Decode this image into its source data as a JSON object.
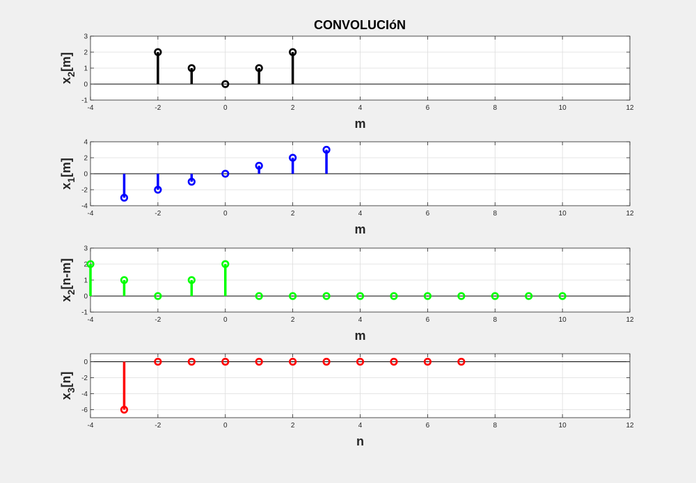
{
  "figure": {
    "title": "CONVOLUCIóN",
    "background": "#f0f0f0"
  },
  "chart_data": [
    {
      "type": "stem",
      "ylabel": "x",
      "ylabel_sub": "2",
      "ylabel_tail": "[m]",
      "xlabel": "m",
      "xlim": [
        -4,
        12
      ],
      "ylim": [
        -1,
        3
      ],
      "xticks": [
        -4,
        -2,
        0,
        2,
        4,
        6,
        8,
        10,
        12
      ],
      "yticks": [
        -1,
        0,
        1,
        2,
        3
      ],
      "grid": true,
      "color": "#000000",
      "x": [
        -2,
        -1,
        0,
        1,
        2
      ],
      "y": [
        2,
        1,
        0,
        1,
        2
      ]
    },
    {
      "type": "stem",
      "ylabel": "x",
      "ylabel_sub": "1",
      "ylabel_tail": "[m]",
      "xlabel": "m",
      "xlim": [
        -4,
        12
      ],
      "ylim": [
        -4,
        4
      ],
      "xticks": [
        -4,
        -2,
        0,
        2,
        4,
        6,
        8,
        10,
        12
      ],
      "yticks": [
        -4,
        -2,
        0,
        2,
        4
      ],
      "grid": true,
      "color": "#0000ff",
      "x": [
        -3,
        -2,
        -1,
        0,
        1,
        2,
        3
      ],
      "y": [
        -3,
        -2,
        -1,
        0,
        1,
        2,
        3
      ]
    },
    {
      "type": "stem",
      "ylabel": "x",
      "ylabel_sub": "2",
      "ylabel_tail": "[n-m]",
      "xlabel": "m",
      "xlim": [
        -4,
        12
      ],
      "ylim": [
        -1,
        3
      ],
      "xticks": [
        -4,
        -2,
        0,
        2,
        4,
        6,
        8,
        10,
        12
      ],
      "yticks": [
        -1,
        0,
        1,
        2,
        3
      ],
      "grid": true,
      "color": "#00ff00",
      "x": [
        -4,
        -3,
        -2,
        -1,
        0,
        1,
        2,
        3,
        4,
        5,
        6,
        7,
        8,
        9,
        10
      ],
      "y": [
        2,
        1,
        0,
        1,
        2,
        0,
        0,
        0,
        0,
        0,
        0,
        0,
        0,
        0,
        0
      ]
    },
    {
      "type": "stem",
      "ylabel": "x",
      "ylabel_sub": "3",
      "ylabel_tail": "[n]",
      "xlabel": "n",
      "xlim": [
        -4,
        12
      ],
      "ylim": [
        -7,
        1
      ],
      "xticks": [
        -4,
        -2,
        0,
        2,
        4,
        6,
        8,
        10,
        12
      ],
      "yticks": [
        -6,
        -4,
        -2,
        0
      ],
      "grid": true,
      "color": "#ff0000",
      "x": [
        -3,
        -2,
        -1,
        0,
        1,
        2,
        3,
        4,
        5,
        6,
        7
      ],
      "y": [
        -6,
        0,
        0,
        0,
        0,
        0,
        0,
        0,
        0,
        0,
        0
      ]
    }
  ]
}
